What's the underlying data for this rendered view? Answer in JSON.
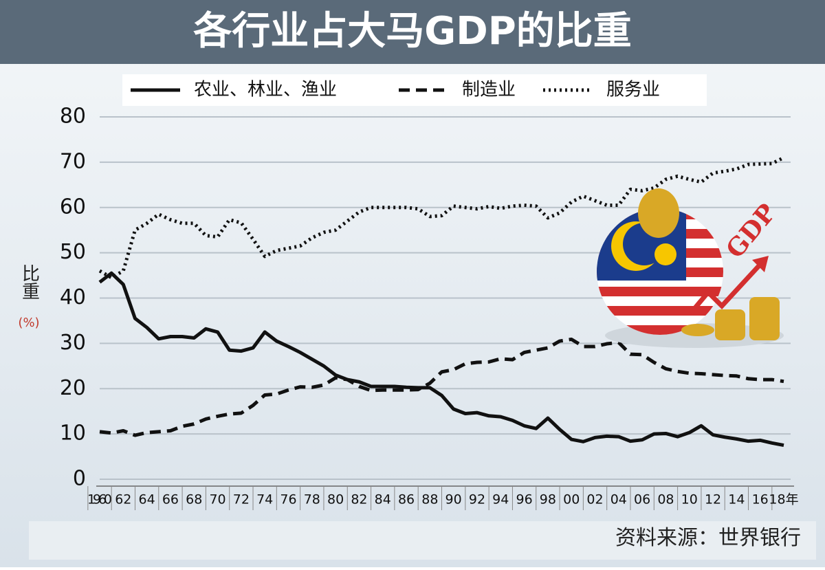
{
  "chart_data": {
    "type": "line",
    "title": "各行业占大马GDP的比重",
    "y_label": "比重",
    "y_unit": "(%)",
    "source": "资料来源：世界银行",
    "illustration_text": "GDP",
    "x": [
      1960,
      1961,
      1962,
      1963,
      1964,
      1965,
      1966,
      1967,
      1968,
      1969,
      1970,
      1971,
      1972,
      1973,
      1974,
      1975,
      1976,
      1977,
      1978,
      1979,
      1980,
      1981,
      1982,
      1983,
      1984,
      1985,
      1986,
      1987,
      1988,
      1989,
      1990,
      1991,
      1992,
      1993,
      1994,
      1995,
      1996,
      1997,
      1998,
      1999,
      2000,
      2001,
      2002,
      2003,
      2004,
      2005,
      2006,
      2007,
      2008,
      2009,
      2010,
      2011,
      2012,
      2013,
      2014,
      2015,
      2016,
      2017,
      2018
    ],
    "series": [
      {
        "name": "农业、林业、渔业",
        "color": "#111111",
        "dash": "solid",
        "values": [
          43.5,
          45.5,
          43,
          35.5,
          33.5,
          31,
          31.5,
          31.5,
          31.2,
          33.2,
          32.5,
          28.5,
          28.3,
          29,
          32.5,
          30.5,
          29.3,
          28,
          26.5,
          25,
          23,
          22,
          21.5,
          20.5,
          20.5,
          20.5,
          20.3,
          20.2,
          20.2,
          18.5,
          15.5,
          14.5,
          14.7,
          14,
          13.8,
          13,
          11.8,
          11.2,
          13.5,
          11,
          8.8,
          8.3,
          9.2,
          9.5,
          9.4,
          8.4,
          8.7,
          10,
          10.1,
          9.4,
          10.3,
          11.8,
          9.8,
          9.3,
          8.9,
          8.4,
          8.6,
          8.0,
          7.5
        ]
      },
      {
        "name": "制造业",
        "color": "#111111",
        "dash": "dashed",
        "values": [
          10.5,
          10.2,
          10.7,
          9.7,
          10.3,
          10.5,
          10.7,
          11.7,
          12.2,
          13.3,
          13.9,
          14.4,
          14.6,
          16.3,
          18.6,
          18.8,
          19.7,
          20.4,
          20.3,
          20.8,
          22.4,
          22,
          20.5,
          19.6,
          19.7,
          19.7,
          19.7,
          19.8,
          21.2,
          23.7,
          24.2,
          25.5,
          25.8,
          25.9,
          26.6,
          26.4,
          28,
          28.5,
          29,
          30.5,
          30.9,
          29.3,
          29.3,
          29.9,
          30.2,
          27.6,
          27.5,
          25.8,
          24.4,
          23.8,
          23.4,
          23.3,
          23.1,
          22.9,
          22.8,
          22.2,
          22.0,
          22.0,
          21.6
        ]
      },
      {
        "name": "服务业",
        "color": "#111111",
        "dash": "dotted",
        "values": [
          46,
          44.5,
          46,
          55,
          56.5,
          58.5,
          57.3,
          56.5,
          56.5,
          53.8,
          53.5,
          57.3,
          56.6,
          53,
          49.2,
          50.5,
          51,
          51.5,
          53.3,
          54.5,
          55,
          57,
          59,
          60,
          60,
          60,
          60,
          59.7,
          58,
          58.2,
          60.3,
          60,
          59.7,
          60.2,
          59.8,
          60.3,
          60.5,
          60.3,
          57.7,
          58.8,
          61.2,
          62.5,
          61.5,
          60.5,
          60.5,
          64,
          63.7,
          64.3,
          66.2,
          66.9,
          66.2,
          65.6,
          67.6,
          68,
          68.5,
          69.5,
          69.6,
          69.7,
          71
        ]
      }
    ],
    "xlim": [
      1960,
      2018
    ],
    "xticks": [
      {
        "value": 1960,
        "label": "1960"
      },
      {
        "value": 1962,
        "label": "62"
      },
      {
        "value": 1964,
        "label": "64"
      },
      {
        "value": 1966,
        "label": "66"
      },
      {
        "value": 1968,
        "label": "68"
      },
      {
        "value": 1970,
        "label": "70"
      },
      {
        "value": 1972,
        "label": "72"
      },
      {
        "value": 1974,
        "label": "74"
      },
      {
        "value": 1976,
        "label": "76"
      },
      {
        "value": 1978,
        "label": "78"
      },
      {
        "value": 1980,
        "label": "80"
      },
      {
        "value": 1982,
        "label": "82"
      },
      {
        "value": 1984,
        "label": "84"
      },
      {
        "value": 1986,
        "label": "86"
      },
      {
        "value": 1988,
        "label": "88"
      },
      {
        "value": 1990,
        "label": "90"
      },
      {
        "value": 1992,
        "label": "92"
      },
      {
        "value": 1994,
        "label": "94"
      },
      {
        "value": 1996,
        "label": "96"
      },
      {
        "value": 1998,
        "label": "98"
      },
      {
        "value": 2000,
        "label": "00"
      },
      {
        "value": 2002,
        "label": "02"
      },
      {
        "value": 2004,
        "label": "04"
      },
      {
        "value": 2006,
        "label": "06"
      },
      {
        "value": 2008,
        "label": "08"
      },
      {
        "value": 2010,
        "label": "10"
      },
      {
        "value": 2012,
        "label": "12"
      },
      {
        "value": 2014,
        "label": "14"
      },
      {
        "value": 2016,
        "label": "16"
      },
      {
        "value": 2018,
        "label": "18年"
      }
    ],
    "ylim": [
      0,
      80
    ],
    "yticks": [
      0,
      10,
      20,
      30,
      40,
      50,
      60,
      70,
      80
    ],
    "grid": true
  }
}
